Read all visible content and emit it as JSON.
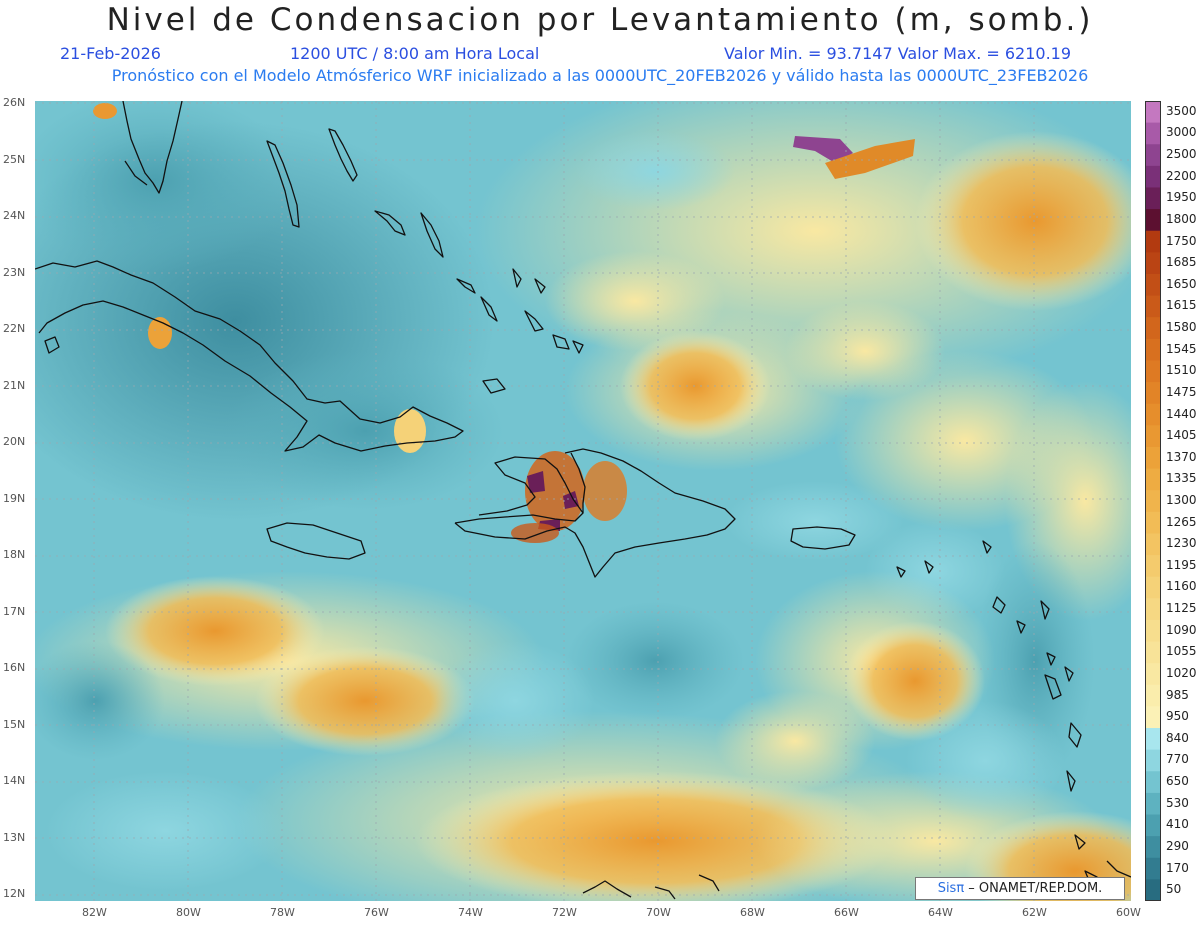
{
  "header": {
    "title": "Nivel de Condensacion por Levantamiento (m, somb.)",
    "date": "21-Feb-2026",
    "time": "1200 UTC / 8:00 am Hora Local",
    "min_max": "Valor Min. = 93.7147  Valor Max. = 6210.19",
    "description": "Pronóstico con el Modelo Atmósferico WRF inicializado a las 0000UTC_20FEB2026 y válido hasta las  0000UTC_23FEB2026"
  },
  "map": {
    "lon_range": [
      -83.2,
      -60
    ],
    "lat_range": [
      11.8,
      26.1
    ],
    "lat_ticks": [
      "26N",
      "25N",
      "24N",
      "23N",
      "22N",
      "21N",
      "20N",
      "19N",
      "18N",
      "17N",
      "16N",
      "15N",
      "14N",
      "13N",
      "12N"
    ],
    "lon_ticks": [
      "82W",
      "80W",
      "78W",
      "76W",
      "74W",
      "72W",
      "70W",
      "68W",
      "66W",
      "64W",
      "62W",
      "60W"
    ]
  },
  "colorbar": {
    "levels": [
      "3500",
      "3000",
      "2500",
      "2200",
      "1950",
      "1800",
      "1750",
      "1685",
      "1650",
      "1615",
      "1580",
      "1545",
      "1510",
      "1475",
      "1440",
      "1405",
      "1370",
      "1335",
      "1300",
      "1265",
      "1230",
      "1195",
      "1160",
      "1125",
      "1090",
      "1055",
      "1020",
      "985",
      "950",
      "840",
      "770",
      "650",
      "530",
      "410",
      "290",
      "170",
      "50"
    ],
    "colors": [
      "#c478c0",
      "#a85aa8",
      "#8e4490",
      "#7a3078",
      "#6a1f58",
      "#5c1030",
      "#b23a10",
      "#ba4414",
      "#c24f16",
      "#ca5a19",
      "#d2661c",
      "#d8701f",
      "#de7a23",
      "#e28427",
      "#e68e2c",
      "#e99832",
      "#eca239",
      "#eeac42",
      "#f0b44c",
      "#f2bc56",
      "#f3c462",
      "#f4cb6d",
      "#f5d278",
      "#f6d883",
      "#f7de8e",
      "#f8e398",
      "#f9e8a2",
      "#faedac",
      "#fbf1b6",
      "#a8e6ee",
      "#8ed6e0",
      "#74c4d0",
      "#5eb2c0",
      "#4ca0b0",
      "#3e8ea0",
      "#327c90",
      "#286c80"
    ]
  },
  "credit": {
    "brand": "Sisπ",
    "text": " – ONAMET/REP.DOM."
  }
}
